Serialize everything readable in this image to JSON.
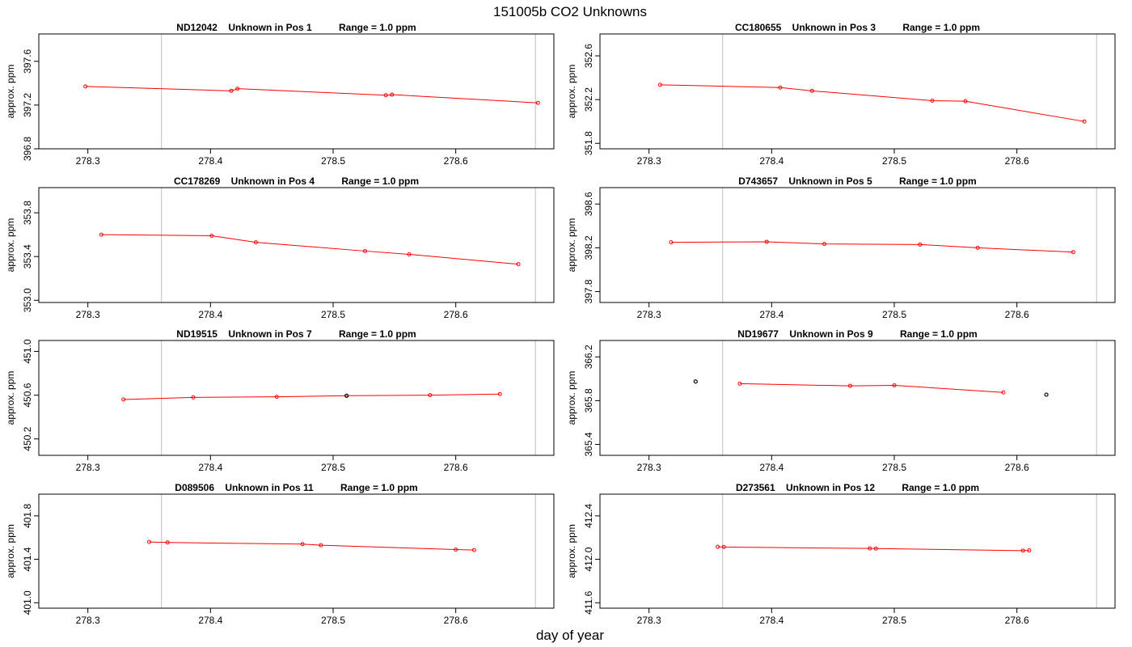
{
  "title": "151005b  CO2 Unknowns",
  "xlabel": "day of year",
  "colors": {
    "line": "#ff0000",
    "marker_normal": "#ff0000",
    "marker_flagged": "#000000",
    "vline": "#c8c8c8",
    "axis": "#000000"
  },
  "chart_data": [
    {
      "type": "line",
      "panel_title": "ND12042    Unknown in Pos 1          Range = 1.0 ppm",
      "ylabel": "approx. ppm",
      "xlim": [
        278.26,
        278.68
      ],
      "xticks": [
        278.3,
        278.4,
        278.5,
        278.6
      ],
      "ylim": [
        396.8,
        397.85
      ],
      "yticks": [
        396.8,
        397.2,
        397.6
      ],
      "vlines": [
        278.36,
        278.665
      ],
      "points": [
        [
          278.298,
          397.37
        ],
        [
          278.417,
          397.33
        ],
        [
          278.422,
          397.35
        ],
        [
          278.543,
          397.29
        ],
        [
          278.548,
          397.295
        ],
        [
          278.667,
          397.22
        ]
      ],
      "flagged": []
    },
    {
      "type": "line",
      "panel_title": "CC180655    Unknown in Pos 3          Range = 1.0 ppm",
      "ylabel": "approx. ppm",
      "xlim": [
        278.26,
        278.68
      ],
      "xticks": [
        278.3,
        278.4,
        278.5,
        278.6
      ],
      "ylim": [
        351.75,
        352.8
      ],
      "yticks": [
        351.8,
        352.2,
        352.6
      ],
      "vlines": [
        278.36,
        278.665
      ],
      "points": [
        [
          278.309,
          352.335
        ],
        [
          278.407,
          352.31
        ],
        [
          278.433,
          352.28
        ],
        [
          278.531,
          352.19
        ],
        [
          278.558,
          352.185
        ],
        [
          278.655,
          352.0
        ]
      ],
      "flagged": []
    },
    {
      "type": "line",
      "panel_title": "CC178269    Unknown in Pos 4          Range = 1.0 ppm",
      "ylabel": "approx. ppm",
      "xlim": [
        278.26,
        278.68
      ],
      "xticks": [
        278.3,
        278.4,
        278.5,
        278.6
      ],
      "ylim": [
        352.98,
        354.03
      ],
      "yticks": [
        353.0,
        353.4,
        353.8
      ],
      "vlines": [
        278.36,
        278.665
      ],
      "points": [
        [
          278.311,
          353.6
        ],
        [
          278.401,
          353.59
        ],
        [
          278.437,
          353.53
        ],
        [
          278.526,
          353.45
        ],
        [
          278.562,
          353.42
        ],
        [
          278.651,
          353.33
        ]
      ],
      "flagged": []
    },
    {
      "type": "line",
      "panel_title": "D743657    Unknown in Pos 5          Range = 1.0 ppm",
      "ylabel": "approx. ppm",
      "xlim": [
        278.26,
        278.68
      ],
      "xticks": [
        278.3,
        278.4,
        278.5,
        278.6
      ],
      "ylim": [
        397.7,
        398.75
      ],
      "yticks": [
        397.8,
        398.2,
        398.6
      ],
      "vlines": [
        278.36,
        278.665
      ],
      "points": [
        [
          278.318,
          398.25
        ],
        [
          278.396,
          398.255
        ],
        [
          278.443,
          398.235
        ],
        [
          278.521,
          398.23
        ],
        [
          278.568,
          398.2
        ],
        [
          278.646,
          398.16
        ]
      ],
      "flagged": []
    },
    {
      "type": "line",
      "panel_title": "ND19515    Unknown in Pos 7          Range = 1.0 ppm",
      "ylabel": "approx. ppm",
      "xlim": [
        278.26,
        278.68
      ],
      "xticks": [
        278.3,
        278.4,
        278.5,
        278.6
      ],
      "ylim": [
        450.05,
        451.1
      ],
      "yticks": [
        450.2,
        450.6,
        451.0
      ],
      "vlines": [
        278.36,
        278.665
      ],
      "points": [
        [
          278.329,
          450.56
        ],
        [
          278.386,
          450.58
        ],
        [
          278.454,
          450.585
        ],
        [
          278.511,
          450.595
        ],
        [
          278.579,
          450.6
        ],
        [
          278.636,
          450.61
        ]
      ],
      "flagged": [
        [
          278.511,
          450.595
        ]
      ]
    },
    {
      "type": "line",
      "panel_title": "ND19677    Unknown in Pos 9          Range = 1.0 ppm",
      "ylabel": "approx. ppm",
      "xlim": [
        278.26,
        278.68
      ],
      "xticks": [
        278.3,
        278.4,
        278.5,
        278.6
      ],
      "ylim": [
        365.3,
        366.35
      ],
      "yticks": [
        365.4,
        365.8,
        366.2
      ],
      "vlines": [
        278.36,
        278.665
      ],
      "points": [
        [
          278.374,
          365.955
        ],
        [
          278.464,
          365.935
        ],
        [
          278.5,
          365.94
        ],
        [
          278.589,
          365.875
        ]
      ],
      "flagged": [
        [
          278.338,
          365.975
        ],
        [
          278.624,
          365.855
        ]
      ]
    },
    {
      "type": "line",
      "panel_title": "D089506    Unknown in Pos 11          Range = 1.0 ppm",
      "ylabel": "approx. ppm",
      "xlim": [
        278.26,
        278.68
      ],
      "xticks": [
        278.3,
        278.4,
        278.5,
        278.6
      ],
      "ylim": [
        400.95,
        402.0
      ],
      "yticks": [
        401.0,
        401.4,
        401.8
      ],
      "vlines": [
        278.36,
        278.665
      ],
      "points": [
        [
          278.35,
          401.56
        ],
        [
          278.365,
          401.555
        ],
        [
          278.475,
          401.54
        ],
        [
          278.49,
          401.53
        ],
        [
          278.6,
          401.49
        ],
        [
          278.615,
          401.485
        ]
      ],
      "flagged": []
    },
    {
      "type": "line",
      "panel_title": "D273561    Unknown in Pos 12          Range = 1.0 ppm",
      "ylabel": "approx. ppm",
      "xlim": [
        278.26,
        278.68
      ],
      "xticks": [
        278.3,
        278.4,
        278.5,
        278.6
      ],
      "ylim": [
        411.55,
        412.6
      ],
      "yticks": [
        411.6,
        412.0,
        412.4
      ],
      "vlines": [
        278.36,
        278.665
      ],
      "points": [
        [
          278.356,
          412.115
        ],
        [
          278.361,
          412.113
        ],
        [
          278.48,
          412.1
        ],
        [
          278.485,
          412.099
        ],
        [
          278.605,
          412.08
        ],
        [
          278.61,
          412.082
        ]
      ],
      "flagged": []
    }
  ]
}
